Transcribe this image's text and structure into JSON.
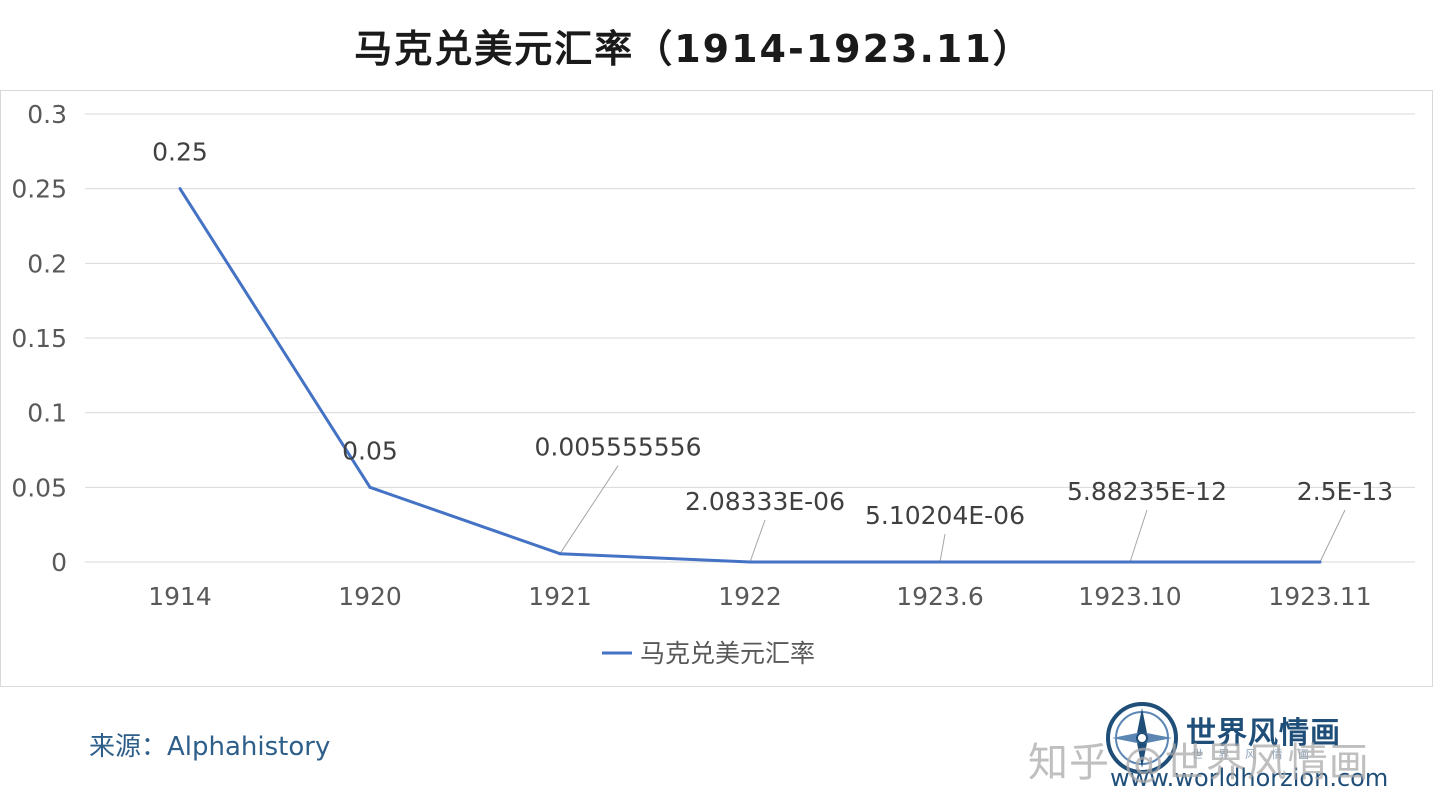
{
  "header": {
    "title": "马克兑美元汇率（1914-1923.11）"
  },
  "chart_data": {
    "type": "line",
    "title": "马克兑美元汇率（1914-1923.11）",
    "categories": [
      "1914",
      "1920",
      "1921",
      "1922",
      "1923.6",
      "1923.10",
      "1923.11"
    ],
    "series": [
      {
        "name": "马克兑美元汇率",
        "values": [
          0.25,
          0.05,
          0.005555556,
          2.08333e-06,
          5.10204e-06,
          5.88235e-12,
          2.5e-13
        ],
        "data_labels": [
          "0.25",
          "0.05",
          "0.005555556",
          "2.08333E-06",
          "5.10204E-06",
          "5.88235E-12",
          "2.5E-13"
        ],
        "color": "#4472c4"
      }
    ],
    "y_ticks": [
      "0",
      "0.05",
      "0.1",
      "0.15",
      "0.2",
      "0.25",
      "0.3"
    ],
    "ylim": [
      0,
      0.3
    ],
    "grid": true,
    "legend_position": "bottom"
  },
  "footer": {
    "source": "来源：Alphahistory",
    "brand_name": "世界风情画",
    "brand_sub": "世 界 风 情 画",
    "brand_url": "www.worldhorzion.com",
    "watermark": "知乎 @世界风情画"
  }
}
